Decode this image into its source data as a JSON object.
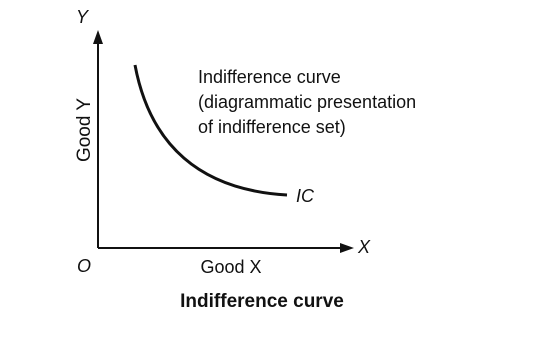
{
  "axes": {
    "y_letter": "Y",
    "x_letter": "X",
    "origin": "O",
    "y_label": "Good Y",
    "x_label": "Good X"
  },
  "curve": {
    "label": "IC"
  },
  "annotation": {
    "lines": [
      "Indifference curve",
      "(diagrammatic presentation",
      "of indifference set)"
    ]
  },
  "caption": "Indifference curve"
}
